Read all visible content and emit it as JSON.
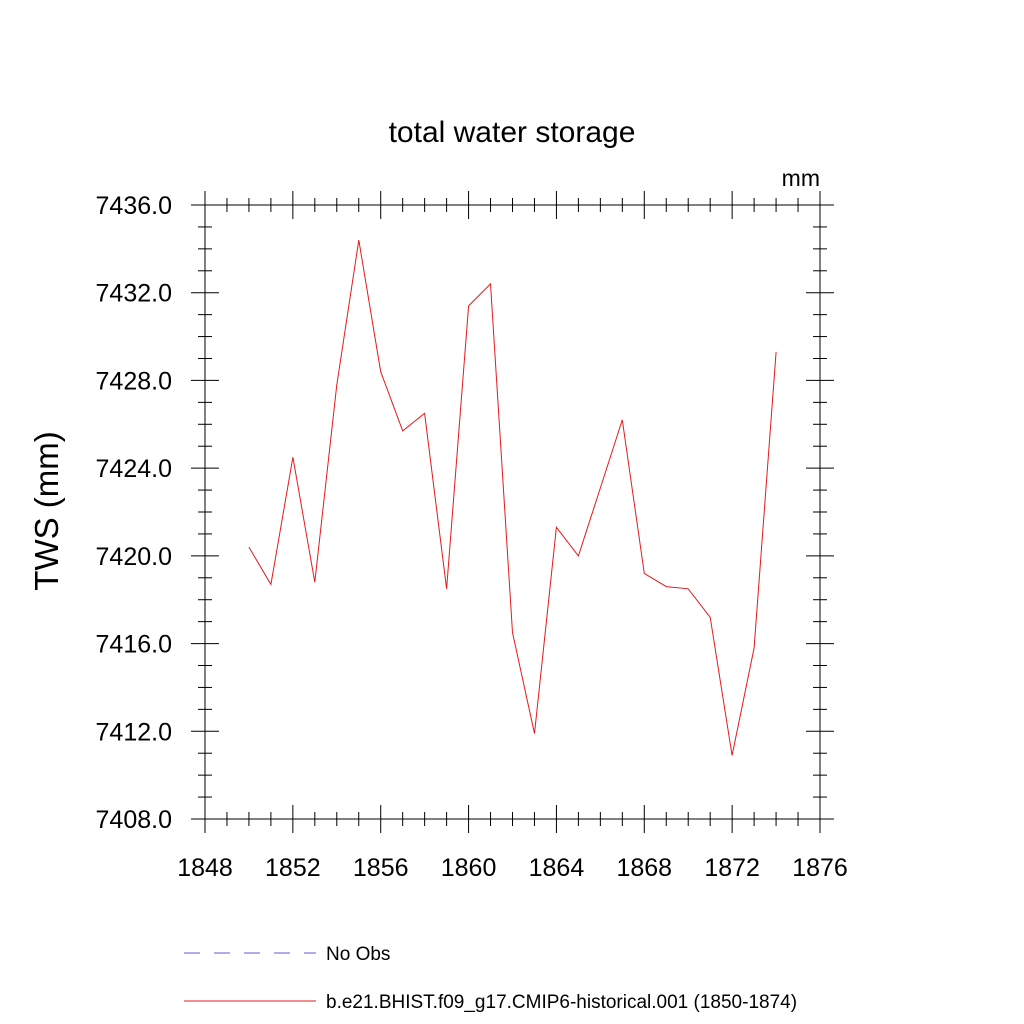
{
  "chart_data": {
    "type": "line",
    "title": "total water storage",
    "units": "mm",
    "ylabel": "TWS  (mm)",
    "xlim": [
      1848,
      1876
    ],
    "ylim": [
      7408,
      7436
    ],
    "x_ticks": [
      1848,
      1852,
      1856,
      1860,
      1864,
      1868,
      1872,
      1876
    ],
    "x_tick_labels": [
      "1848",
      "1852",
      "1856",
      "1860",
      "1864",
      "1868",
      "1872",
      "1876"
    ],
    "y_ticks": [
      7408,
      7412,
      7416,
      7420,
      7424,
      7428,
      7432,
      7436
    ],
    "y_tick_labels": [
      "7408.0",
      "7412.0",
      "7416.0",
      "7420.0",
      "7424.0",
      "7428.0",
      "7432.0",
      "7436.0"
    ],
    "x_minor_step": 1,
    "y_minor_step": 1,
    "grid": false,
    "legend_position": "bottom",
    "legend": [
      {
        "label": "No Obs",
        "color": "#6a5acd",
        "style": "dashed"
      },
      {
        "label": "b.e21.BHIST.f09_g17.CMIP6-historical.001 (1850-1874)",
        "color": "#e41a1c",
        "style": "solid"
      }
    ],
    "series": [
      {
        "color": "#e41a1c",
        "x": [
          1850,
          1851,
          1852,
          1853,
          1854,
          1855,
          1856,
          1857,
          1858,
          1859,
          1860,
          1861,
          1862,
          1863,
          1864,
          1865,
          1866,
          1867,
          1868,
          1869,
          1870,
          1871,
          1872,
          1873,
          1874
        ],
        "y": [
          7420.4,
          7418.7,
          7424.5,
          7418.8,
          7427.8,
          7434.4,
          7428.4,
          7425.7,
          7426.5,
          7418.5,
          7431.4,
          7432.4,
          7416.5,
          7411.9,
          7421.3,
          7420.0,
          7423.1,
          7426.2,
          7419.2,
          7418.6,
          7418.5,
          7417.2,
          7410.9,
          7415.8,
          7429.3
        ]
      }
    ]
  }
}
